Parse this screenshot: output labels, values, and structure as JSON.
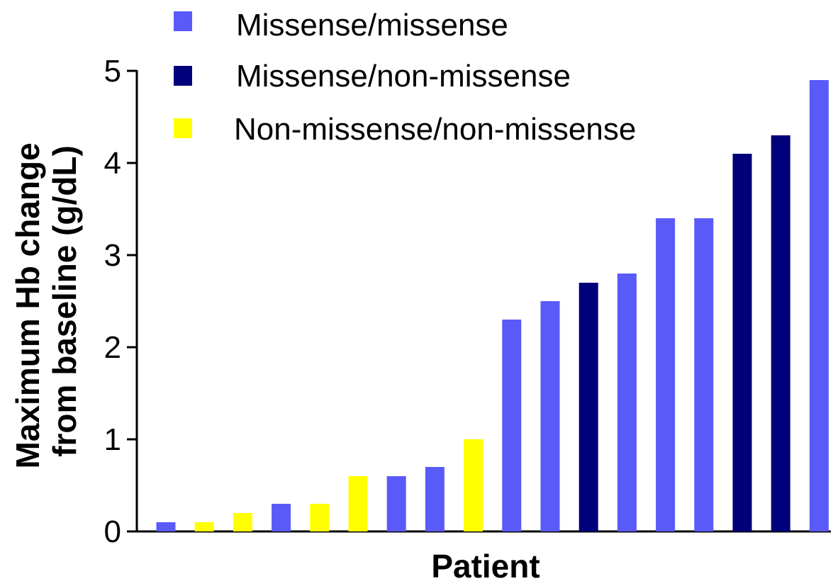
{
  "chart_data": {
    "type": "bar",
    "ylabel_lines": [
      "Maximum Hb change",
      "from baseline (g/dL)"
    ],
    "xlabel": "Patient",
    "ylim": [
      0,
      5
    ],
    "yticks": [
      "0",
      "1",
      "2",
      "3",
      "4",
      "5"
    ],
    "grid": false,
    "legend_position": "top-left",
    "legend": [
      {
        "key": "mm",
        "name": "Missense/missense",
        "color": "#5a5af8"
      },
      {
        "key": "mn",
        "name": "Missense/non-missense",
        "color": "#00007a"
      },
      {
        "key": "nn",
        "name": "Non-missense/non-missense",
        "color": "#ffff00"
      }
    ],
    "bars": [
      {
        "value": 0.1,
        "group": "mm"
      },
      {
        "value": 0.1,
        "group": "nn"
      },
      {
        "value": 0.2,
        "group": "nn"
      },
      {
        "value": 0.3,
        "group": "mm"
      },
      {
        "value": 0.3,
        "group": "nn"
      },
      {
        "value": 0.6,
        "group": "nn"
      },
      {
        "value": 0.6,
        "group": "mm"
      },
      {
        "value": 0.7,
        "group": "mm"
      },
      {
        "value": 1.0,
        "group": "nn"
      },
      {
        "value": 2.3,
        "group": "mm"
      },
      {
        "value": 2.5,
        "group": "mm"
      },
      {
        "value": 2.7,
        "group": "mn"
      },
      {
        "value": 2.8,
        "group": "mm"
      },
      {
        "value": 3.4,
        "group": "mm"
      },
      {
        "value": 3.4,
        "group": "mm"
      },
      {
        "value": 4.1,
        "group": "mn"
      },
      {
        "value": 4.3,
        "group": "mn"
      },
      {
        "value": 4.9,
        "group": "mm"
      }
    ]
  }
}
